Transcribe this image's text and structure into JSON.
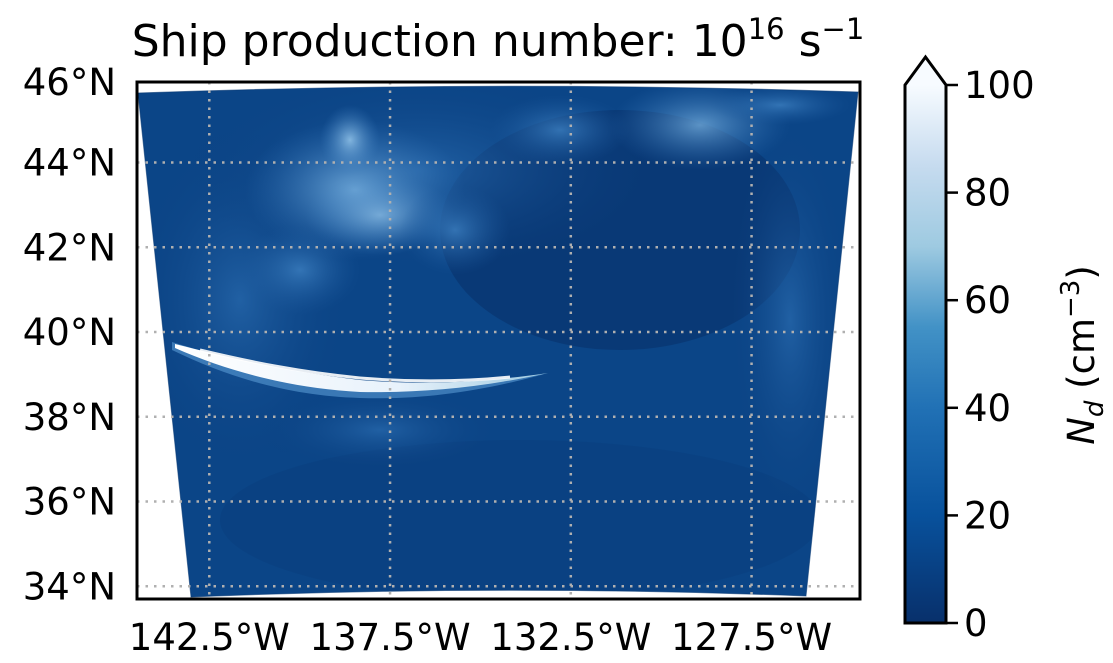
{
  "title": {
    "prefix": "Ship production number: ",
    "base": "10",
    "exponent": "16",
    "unit": " s",
    "unit_exponent": "−1"
  },
  "map": {
    "lon_ticks": [
      "142.5°W",
      "137.5°W",
      "132.5°W",
      "127.5°W"
    ],
    "lat_ticks": [
      "46°N",
      "44°N",
      "42°N",
      "40°N",
      "38°N",
      "36°N",
      "34°N"
    ],
    "lon_range": [
      -144.5,
      -124.5
    ],
    "lat_range": [
      33.7,
      45.9
    ],
    "gridlines": true,
    "colormap": "Blues_r",
    "features": [
      "ship-track-plume"
    ]
  },
  "colorbar": {
    "ticks": [
      "0",
      "20",
      "40",
      "60",
      "80",
      "100"
    ],
    "range": [
      0,
      100
    ],
    "extend": "max",
    "label_symbol": "N",
    "label_subscript": "d",
    "label_unit_open": " (cm",
    "label_unit_exponent": "−3",
    "label_unit_close": ")",
    "colors": {
      "low": "#08306b",
      "mid": "#2171b5",
      "high": "#c6dbef",
      "max": "#f7fbff"
    }
  }
}
